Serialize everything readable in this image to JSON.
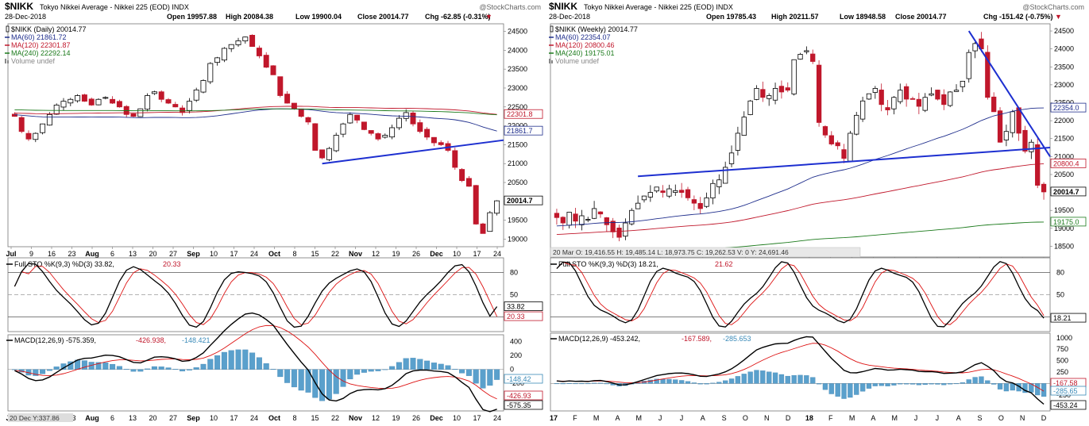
{
  "charts": [
    {
      "id": "daily",
      "symbol": "$NIKK",
      "name": "Tokyo Nikkei Average - Nikkei 225 (EOD)",
      "exchange": "INDX",
      "date": "28-Dec-2018",
      "watermark": "@StockCharts.com",
      "quote": {
        "open": "Open 19957.88",
        "high": "High 20084.38",
        "low": "Low 19900.04",
        "close": "Close 20014.77",
        "chg": "Chg -62.85 (-0.31%)",
        "chg_arrow": "▼"
      },
      "legend": [
        {
          "label": "$NIKK (Daily) 20014.77",
          "color": "#000000",
          "marker": "candle"
        },
        {
          "label": "MA(60) 21861.72",
          "color": "#1f2e8c",
          "marker": "line"
        },
        {
          "label": "MA(120) 22301.87",
          "color": "#c0172b",
          "marker": "line"
        },
        {
          "label": "MA(240) 22292.14",
          "color": "#1b7a1b",
          "marker": "line"
        },
        {
          "label": "Volume undef",
          "color": "#888888",
          "marker": "bars"
        }
      ],
      "price_axis": [
        "24500",
        "24000",
        "23500",
        "23000",
        "22500",
        "22000",
        "21500",
        "21000",
        "20500",
        "20000",
        "19500",
        "19000"
      ],
      "price_flags": [
        {
          "text": "22301.8",
          "color": "#c0172b"
        },
        {
          "text": "21861.7",
          "color": "#1f2e8c"
        },
        {
          "text": "20014.7",
          "color": "#000000"
        }
      ],
      "x_axis": [
        "Jul",
        "9",
        "16",
        "23",
        "Aug",
        "6",
        "13",
        "20",
        "27",
        "Sep",
        "10",
        "17",
        "24",
        "Oct",
        "8",
        "15",
        "22",
        "Nov",
        "12",
        "19",
        "26",
        "Dec",
        "10",
        "17",
        "24"
      ],
      "x_axis_bold": [
        "Jul",
        "Aug",
        "Sep",
        "Oct",
        "Nov",
        "Dec"
      ],
      "sto": {
        "title": "Full STO %K(9,3) %D(3) 33.82,",
        "d_value": "20.33",
        "axis": [
          "80",
          "50",
          "20"
        ],
        "flags": [
          {
            "text": "33.82",
            "color": "#000000"
          },
          {
            "text": "20.33",
            "color": "#c0172b"
          }
        ]
      },
      "macd": {
        "title": "MACD(12,26,9) -575.359,",
        "signal": "-426.938,",
        "hist": "-148.421",
        "axis": [
          "400",
          "200",
          "0",
          "-200",
          "-400"
        ],
        "flags": [
          {
            "text": "-148.42",
            "color": "#3a8ab8"
          },
          {
            "text": "-426.93",
            "color": "#c0172b"
          },
          {
            "text": "-575.35",
            "color": "#000000"
          }
        ]
      },
      "footer": "20 Dec Y:337.86"
    },
    {
      "id": "weekly",
      "symbol": "$NIKK",
      "name": "Tokyo Nikkei Average - Nikkei 225 (EOD)",
      "exchange": "INDX",
      "date": "28-Dec-2018",
      "watermark": "@StockCharts.com",
      "quote": {
        "open": "Open 19785.43",
        "high": "High 20211.57",
        "low": "Low 18948.58",
        "close": "Close 20014.77",
        "chg": "Chg -151.42 (-0.75%)",
        "chg_arrow": "▼"
      },
      "legend": [
        {
          "label": "$NIKK (Weekly) 20014.77",
          "color": "#000000",
          "marker": "candle"
        },
        {
          "label": "MA(60) 22354.07",
          "color": "#1f2e8c",
          "marker": "line"
        },
        {
          "label": "MA(120) 20800.46",
          "color": "#c0172b",
          "marker": "line"
        },
        {
          "label": "MA(240) 19175.01",
          "color": "#1b7a1b",
          "marker": "line"
        },
        {
          "label": "Volume undef",
          "color": "#888888",
          "marker": "bars"
        }
      ],
      "price_axis": [
        "24500",
        "24000",
        "23500",
        "23000",
        "22500",
        "22000",
        "21500",
        "21000",
        "20500",
        "20000",
        "19500",
        "19000",
        "18500"
      ],
      "price_flags": [
        {
          "text": "22354.0",
          "color": "#1f2e8c"
        },
        {
          "text": "20800.4",
          "color": "#c0172b"
        },
        {
          "text": "20014.7",
          "color": "#000000"
        },
        {
          "text": "19175.0",
          "color": "#1b7a1b"
        }
      ],
      "x_axis": [
        "17",
        "F",
        "M",
        "A",
        "M",
        "J",
        "J",
        "A",
        "S",
        "O",
        "N",
        "D",
        "18",
        "F",
        "M",
        "A",
        "M",
        "J",
        "J",
        "A",
        "S",
        "O",
        "N",
        "D"
      ],
      "x_axis_bold": [
        "17",
        "18"
      ],
      "status_bar": "20 Mar O: 19,416.55  H: 19,485.14  L: 18,973.75  C: 19,262.53  V: 0  Y: 24,691.46",
      "sto": {
        "title": "Full STO %K(9,3) %D(3) 18.21,",
        "d_value": "21.62",
        "axis": [
          "80",
          "50",
          "20"
        ],
        "flags": [
          {
            "text": "18.21",
            "color": "#000000"
          }
        ]
      },
      "macd": {
        "title": "MACD(12,26,9) -453.242,",
        "signal": "-167.589,",
        "hist": "-285.653",
        "axis": [
          "1000",
          "750",
          "500",
          "250",
          "0",
          "-250",
          "-500"
        ],
        "flags": [
          {
            "text": "-167.58",
            "color": "#c0172b"
          },
          {
            "text": "-285.65",
            "color": "#3a8ab8"
          },
          {
            "text": "-453.24",
            "color": "#000000"
          }
        ]
      }
    }
  ],
  "chart_data": [
    {
      "type": "candlestick",
      "title": "$NIKK Tokyo Nikkei Average - Nikkei 225 (EOD) INDX",
      "interval": "daily",
      "ylim": [
        18800,
        24700
      ],
      "close_approx": [
        22250,
        21850,
        21650,
        21800,
        22050,
        22300,
        22550,
        22650,
        22700,
        22800,
        22650,
        22550,
        22700,
        22750,
        22600,
        22500,
        22300,
        22250,
        22450,
        22800,
        22900,
        22700,
        22600,
        22500,
        22350,
        22650,
        22950,
        23200,
        23650,
        23800,
        24050,
        24150,
        24250,
        24350,
        24100,
        23850,
        23550,
        23350,
        22800,
        22600,
        22450,
        22250,
        22100,
        21350,
        21150,
        21400,
        21750,
        22050,
        22300,
        22150,
        21900,
        21800,
        21650,
        21750,
        21950,
        22200,
        22350,
        22050,
        21850,
        21700,
        21550,
        21500,
        21350,
        20900,
        20550,
        20400,
        19400,
        19150,
        19700,
        20014.77
      ],
      "series": [
        {
          "name": "MA(60)",
          "last": 21861.72
        },
        {
          "name": "MA(120)",
          "last": 22301.87
        },
        {
          "name": "MA(240)",
          "last": 22292.14
        }
      ],
      "trendline": {
        "from": {
          "x": "22",
          "y": 21000
        },
        "to": {
          "x": "24",
          "y": 21600
        }
      }
    },
    {
      "type": "line",
      "title": "Full STO %K(9,3) %D(3)",
      "series": [
        {
          "name": "%K",
          "last": 33.82
        },
        {
          "name": "%D",
          "last": 20.33
        }
      ],
      "ylim": [
        0,
        100
      ]
    },
    {
      "type": "line",
      "title": "MACD(12,26,9)",
      "series": [
        {
          "name": "MACD",
          "last": -575.359
        },
        {
          "name": "Signal",
          "last": -426.938
        },
        {
          "name": "Histogram",
          "last": -148.421
        }
      ],
      "ylim": [
        -600,
        500
      ]
    },
    {
      "type": "candlestick",
      "title": "$NIKK Tokyo Nikkei Average - Nikkei 225 (EOD) INDX",
      "interval": "weekly",
      "ylim": [
        18200,
        24700
      ],
      "close_approx": [
        19300,
        19150,
        19450,
        19200,
        19350,
        19250,
        19550,
        19400,
        19100,
        18900,
        18750,
        19150,
        19500,
        19700,
        19900,
        20000,
        20150,
        20000,
        20100,
        20050,
        20000,
        19850,
        19700,
        19550,
        19850,
        20250,
        20350,
        20700,
        21100,
        21650,
        22100,
        22550,
        22900,
        22650,
        22700,
        22900,
        22800,
        22850,
        23700,
        23850,
        23950,
        23650,
        21950,
        21600,
        21350,
        21300,
        20950,
        21650,
        22150,
        22550,
        22750,
        22900,
        22450,
        22300,
        22650,
        22850,
        22600,
        22600,
        22400,
        22650,
        22750,
        22600,
        22450,
        22800,
        22850,
        23100,
        23900,
        24150,
        24000,
        22650,
        22250,
        21400,
        21700,
        22250,
        21650,
        21150,
        21400,
        20200,
        20014.77
      ],
      "series": [
        {
          "name": "MA(60)",
          "last": 22354.07
        },
        {
          "name": "MA(120)",
          "last": 20800.46
        },
        {
          "name": "MA(240)",
          "last": 19175.01
        }
      ]
    },
    {
      "type": "line",
      "title": "Full STO %K(9,3) %D(3)",
      "series": [
        {
          "name": "%K",
          "last": 18.21
        },
        {
          "name": "%D",
          "last": 21.62
        }
      ],
      "ylim": [
        0,
        100
      ]
    },
    {
      "type": "line",
      "title": "MACD(12,26,9)",
      "series": [
        {
          "name": "MACD",
          "last": -453.242
        },
        {
          "name": "Signal",
          "last": -167.589
        },
        {
          "name": "Histogram",
          "last": -285.653
        }
      ],
      "ylim": [
        -600,
        1100
      ]
    }
  ]
}
